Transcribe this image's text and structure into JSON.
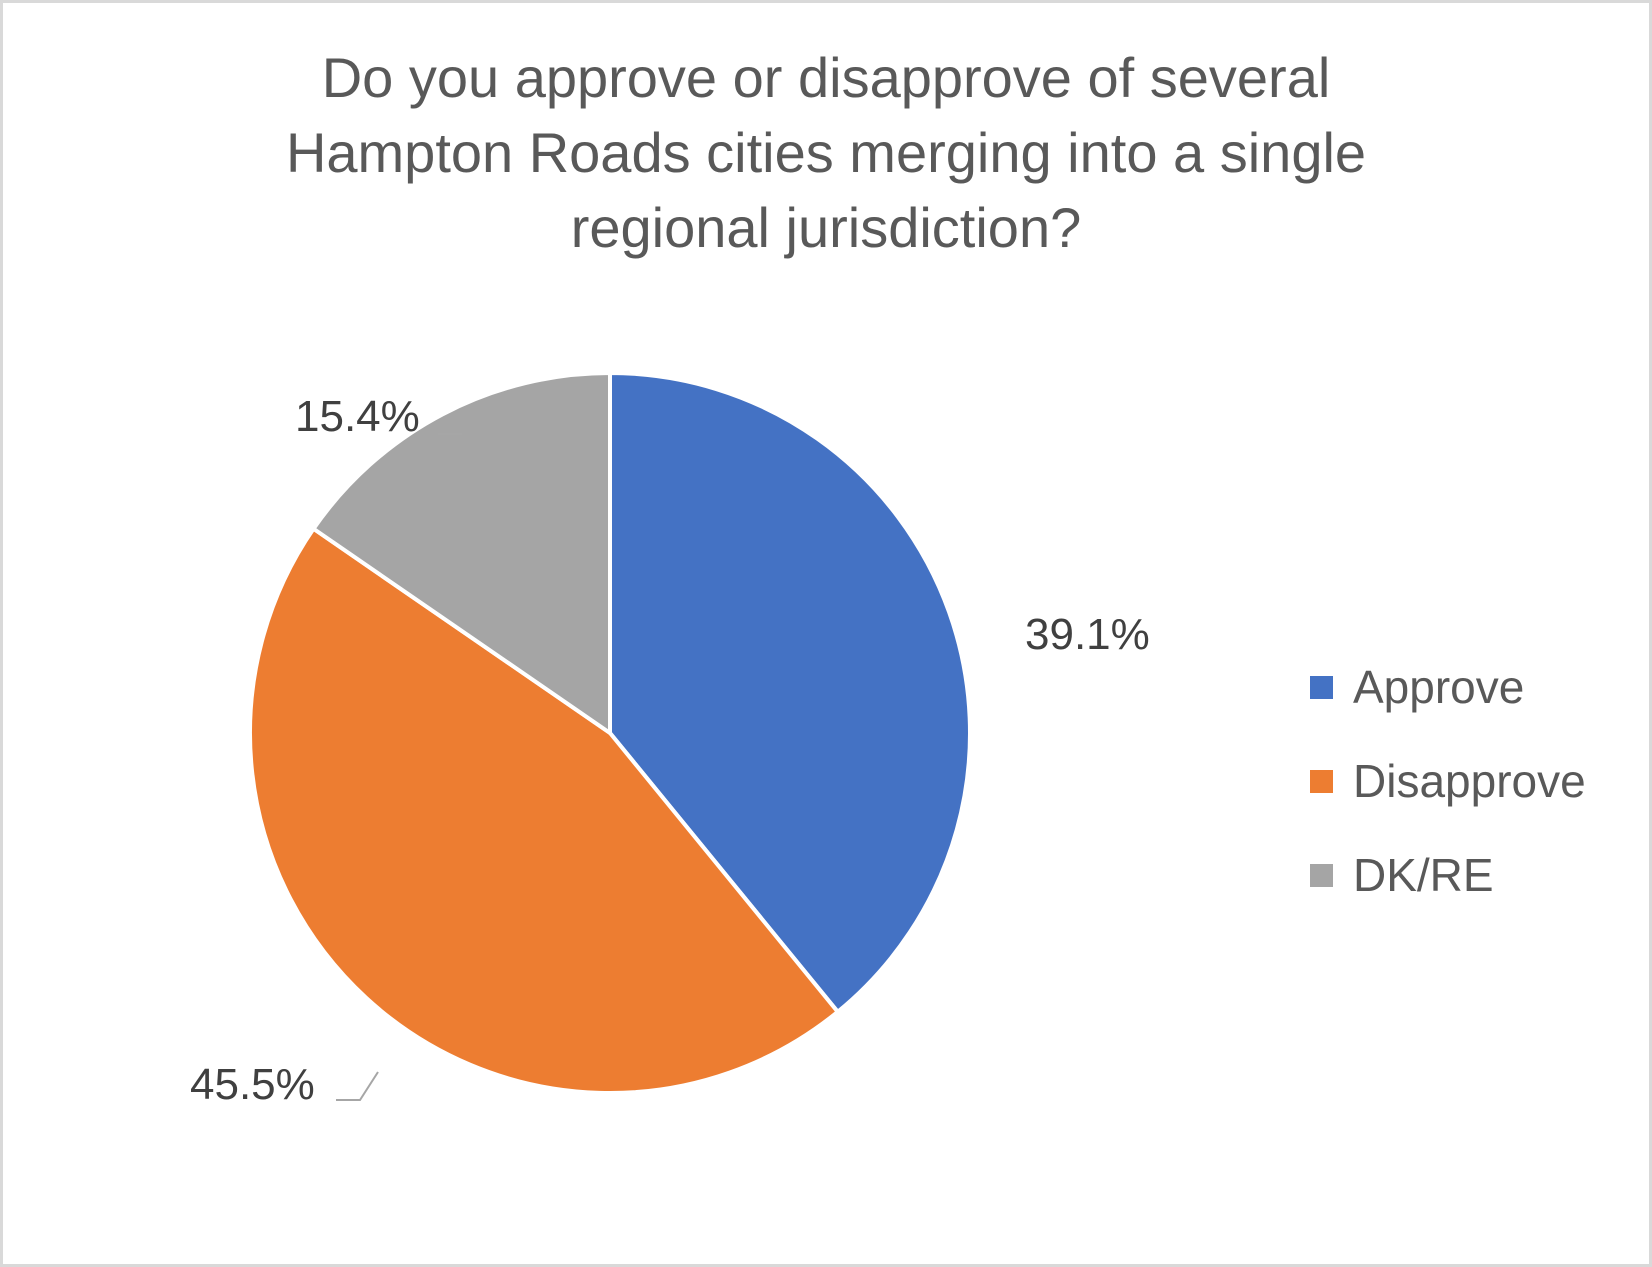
{
  "chart_data": {
    "type": "pie",
    "title": "Do you approve or disapprove of several Hampton Roads cities merging into a single regional jurisdiction?",
    "title_lines": [
      "Do you approve or disapprove of several",
      "Hampton Roads cities merging into a single",
      "regional jurisdiction?"
    ],
    "categories": [
      "Approve",
      "Disapprove",
      "DK/RE"
    ],
    "values": [
      39.1,
      45.5,
      15.4
    ],
    "labels": [
      "39.1%",
      "45.5%",
      "15.4%"
    ],
    "colors": [
      "#4472C4",
      "#ED7D31",
      "#A5A5A5"
    ],
    "legend_position": "right"
  },
  "legend": [
    {
      "label": "Approve",
      "color": "#4472C4"
    },
    {
      "label": "Disapprove",
      "color": "#ED7D31"
    },
    {
      "label": "DK/RE",
      "color": "#A5A5A5"
    }
  ]
}
